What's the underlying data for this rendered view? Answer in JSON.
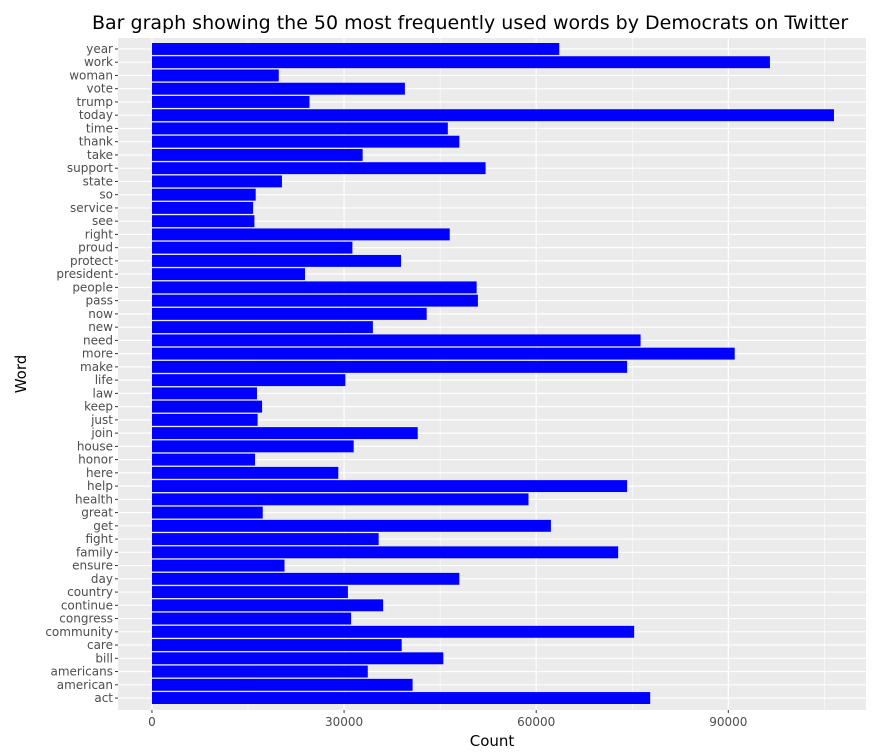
{
  "chart_data": {
    "type": "bar",
    "orientation": "horizontal",
    "title": "Bar graph showing the 50 most frequently used words by Democrats on Twitter",
    "xlabel": "Count",
    "ylabel": "Word",
    "xlim": [
      -5300,
      111500
    ],
    "xticks": [
      0,
      30000,
      60000,
      90000
    ],
    "xtick_labels": [
      "0",
      "30000",
      "60000",
      "90000"
    ],
    "grid": true,
    "legend": "none",
    "bar_color": "#0000FF",
    "panel_color": "#EBEBEB",
    "categories": [
      "act",
      "american",
      "americans",
      "bill",
      "care",
      "community",
      "congress",
      "continue",
      "country",
      "day",
      "ensure",
      "family",
      "fight",
      "get",
      "great",
      "health",
      "help",
      "here",
      "honor",
      "house",
      "join",
      "just",
      "keep",
      "law",
      "life",
      "make",
      "more",
      "need",
      "new",
      "now",
      "pass",
      "people",
      "president",
      "protect",
      "proud",
      "right",
      "see",
      "service",
      "so",
      "state",
      "support",
      "take",
      "thank",
      "time",
      "today",
      "trump",
      "vote",
      "woman",
      "work",
      "year"
    ],
    "values": [
      77800,
      40700,
      33700,
      45500,
      39000,
      75300,
      31100,
      36100,
      30600,
      48000,
      20700,
      72800,
      35400,
      62300,
      17300,
      58800,
      74200,
      29100,
      16100,
      31500,
      41500,
      16500,
      17200,
      16400,
      30200,
      74200,
      91000,
      76300,
      34500,
      42900,
      50900,
      50700,
      23900,
      38900,
      31300,
      46500,
      16000,
      15800,
      16200,
      20300,
      52100,
      32900,
      48000,
      46200,
      106500,
      24600,
      39500,
      19800,
      96500,
      63600
    ]
  }
}
